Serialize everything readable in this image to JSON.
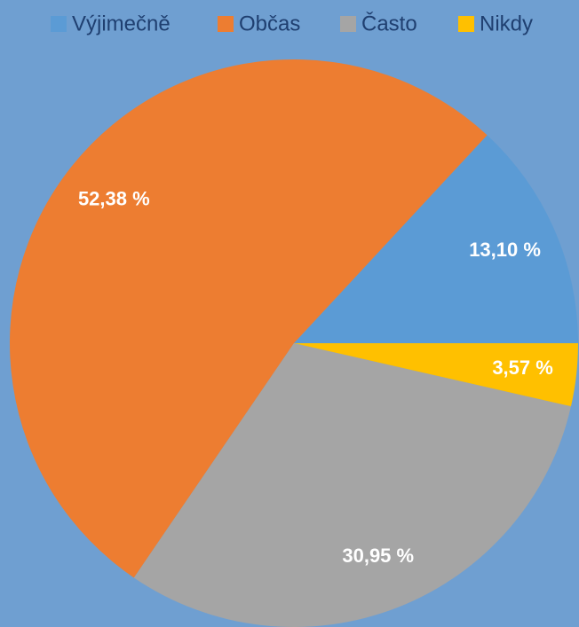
{
  "chart_data": {
    "type": "pie",
    "categories": [
      "Výjimečně",
      "Občas",
      "Často",
      "Nikdy"
    ],
    "values": [
      13.1,
      52.38,
      30.95,
      3.57
    ],
    "value_labels": [
      "13,10 %",
      "52,38 %",
      "30,95 %",
      "3,57 %"
    ],
    "colors": [
      "#5b9bd5",
      "#ed7d31",
      "#a5a5a5",
      "#ffc000"
    ],
    "legend": "top"
  }
}
